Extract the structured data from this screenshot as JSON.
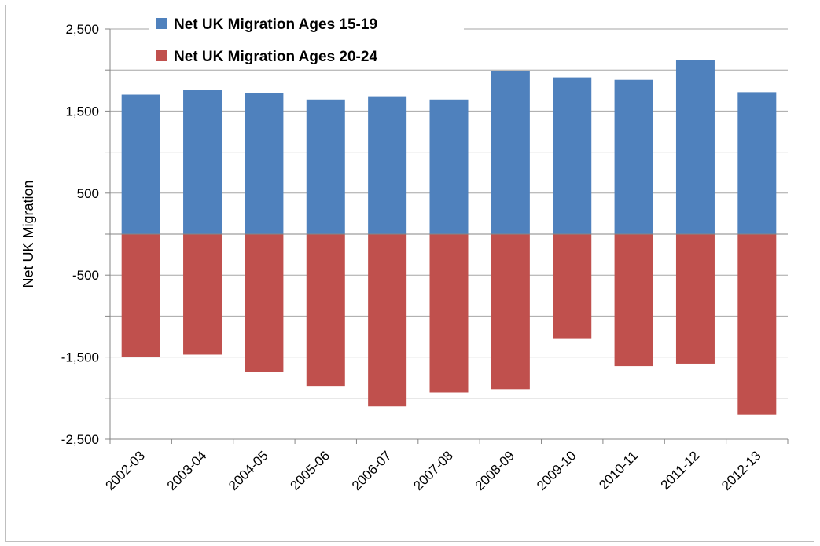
{
  "chart_data": {
    "type": "bar",
    "title": "",
    "xlabel": "",
    "ylabel": "Net UK Migration",
    "ylim": [
      -2500,
      2500
    ],
    "yticks": [
      2500,
      1500,
      500,
      -500,
      -1500,
      -2500
    ],
    "ytick_labels": [
      "2,500",
      "1,500",
      "500",
      "-500",
      "-1,500",
      "-2,500"
    ],
    "grid": true,
    "legend_position": "top-left",
    "categories": [
      "2002-03",
      "2003-04",
      "2004-05",
      "2005-06",
      "2006-07",
      "2007-08",
      "2008-09",
      "2009-10",
      "2010-11",
      "2011-12",
      "2012-13"
    ],
    "series": [
      {
        "name": "Net UK Migration Ages 15-19",
        "color": "#4f81bd",
        "values": [
          1700,
          1760,
          1720,
          1640,
          1680,
          1640,
          1990,
          1910,
          1880,
          2120,
          1730
        ]
      },
      {
        "name": "Net UK Migration Ages 20-24",
        "color": "#c0504d",
        "values": [
          -1500,
          -1470,
          -1680,
          -1850,
          -2100,
          -1930,
          -1890,
          -1270,
          -1610,
          -1580,
          -2200
        ]
      }
    ]
  }
}
